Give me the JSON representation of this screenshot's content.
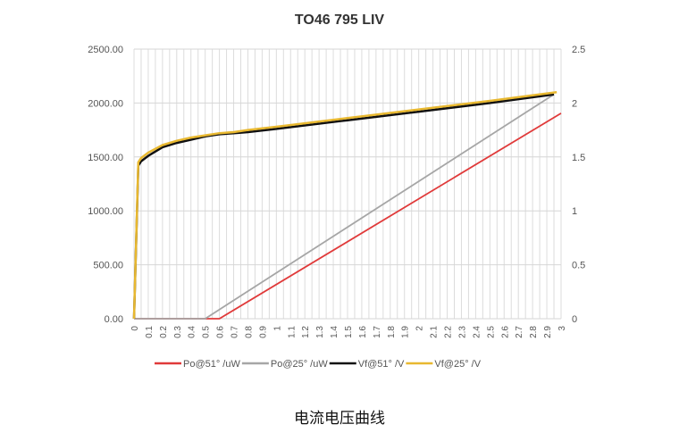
{
  "chart_data": {
    "type": "line",
    "title": "TO46 795 LIV",
    "xlabel": "",
    "ylabel": "",
    "y2label": "",
    "xlim": [
      0,
      3
    ],
    "ylim": [
      0,
      2500
    ],
    "y2lim": [
      0,
      2.5
    ],
    "x_ticks": [
      "0",
      "0.1",
      "0.2",
      "0.3",
      "0.4",
      "0.5",
      "0.6",
      "0.7",
      "0.8",
      "0.9",
      "1",
      "1.1",
      "1.2",
      "1.3",
      "1.4",
      "1.5",
      "1.6",
      "1.7",
      "1.8",
      "1.9",
      "2",
      "2.1",
      "2.2",
      "2.3",
      "2.4",
      "2.5",
      "2.6",
      "2.7",
      "2.8",
      "2.9",
      "3"
    ],
    "y_ticks": [
      "0.00",
      "500.00",
      "1000.00",
      "1500.00",
      "2000.00",
      "2500.00"
    ],
    "y2_ticks": [
      "0",
      "0.5",
      "1",
      "1.5",
      "2",
      "2.5"
    ],
    "grid": true,
    "legend": "bottom",
    "series": [
      {
        "name": "Po@51°  /uW",
        "axis": "left",
        "color": "#e03a3a",
        "x": [
          0,
          0.6,
          3
        ],
        "y": [
          0,
          0,
          1905
        ]
      },
      {
        "name": "Po@25°  /uW",
        "axis": "left",
        "color": "#a6a6a6",
        "x": [
          0,
          0.5,
          2.95
        ],
        "y": [
          0,
          0,
          2080
        ]
      },
      {
        "name": "Vf@51°  /V",
        "axis": "right",
        "color": "#111111",
        "x": [
          0,
          0.03,
          0.05,
          0.1,
          0.2,
          0.3,
          0.4,
          0.5,
          0.6,
          0.7,
          0.8,
          1.0,
          1.5,
          2.0,
          2.5,
          2.95
        ],
        "y": [
          0,
          1.42,
          1.46,
          1.51,
          1.59,
          1.63,
          1.66,
          1.69,
          1.71,
          1.72,
          1.73,
          1.76,
          1.84,
          1.92,
          2.0,
          2.08
        ]
      },
      {
        "name": "Vf@25°  /V",
        "axis": "right",
        "color": "#e8b830",
        "x": [
          0,
          0.03,
          0.05,
          0.1,
          0.2,
          0.3,
          0.4,
          0.5,
          0.6,
          0.7,
          0.8,
          1.0,
          1.5,
          2.0,
          2.5,
          2.97
        ],
        "y": [
          0,
          1.45,
          1.49,
          1.54,
          1.61,
          1.65,
          1.68,
          1.7,
          1.72,
          1.73,
          1.75,
          1.78,
          1.86,
          1.94,
          2.02,
          2.1
        ]
      }
    ]
  },
  "caption": "电流电压曲线"
}
